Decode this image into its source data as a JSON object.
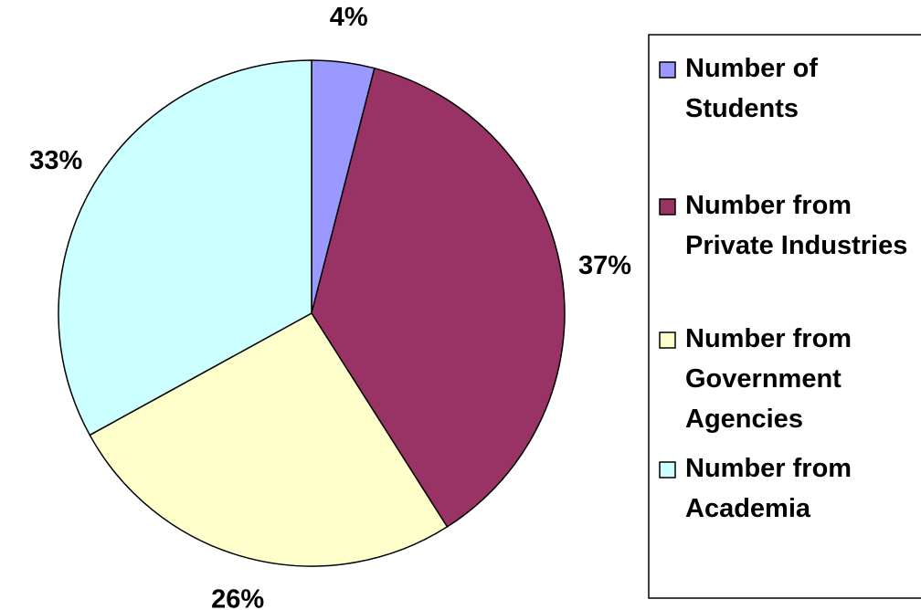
{
  "chart_data": {
    "type": "pie",
    "categories": [
      "Number of Students",
      "Number from Private Industries",
      "Number from Government Agencies",
      "Number from Academia"
    ],
    "values": [
      4,
      37,
      26,
      33
    ],
    "value_labels": [
      "4%",
      "37%",
      "26%",
      "33%"
    ],
    "colors": [
      "#9999ff",
      "#993366",
      "#ffffcc",
      "#ccffff"
    ],
    "legend": "right"
  }
}
